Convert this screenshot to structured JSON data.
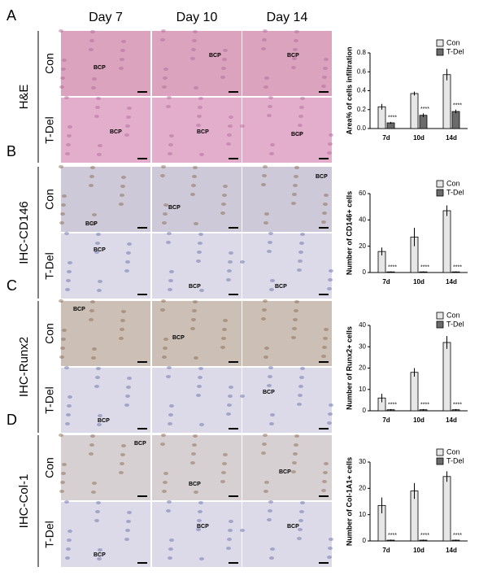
{
  "columns": [
    "Day 7",
    "Day 10",
    "Day 14"
  ],
  "panels": [
    {
      "letter": "A",
      "stain": "H&E",
      "rows": [
        "Con",
        "T-Del"
      ],
      "tile_labels": [
        "BCP",
        "BCP",
        "BCP",
        "BCP",
        "BCP",
        "BCP"
      ]
    },
    {
      "letter": "B",
      "stain": "IHC-CD146",
      "rows": [
        "Con",
        "T-Del"
      ],
      "tile_labels": [
        "BCP",
        "BCP",
        "BCP",
        "BCP",
        "BCP",
        "BCP"
      ]
    },
    {
      "letter": "C",
      "stain": "IHC-Runx2",
      "rows": [
        "Con",
        "T-Del"
      ],
      "tile_labels": [
        "BCP",
        "BCP",
        "BCP",
        "BCP"
      ]
    },
    {
      "letter": "D",
      "stain": "IHC-Col-1",
      "rows": [
        "Con",
        "T-Del"
      ],
      "tile_labels": [
        "BCP",
        "BCP",
        "BCP",
        "BCP",
        "BCP",
        "BCP"
      ]
    }
  ],
  "chart_data": [
    {
      "type": "bar",
      "y_label": "Area% of cells infiltration",
      "categories": [
        "7d",
        "10d",
        "14d"
      ],
      "series": [
        {
          "name": "Con",
          "color": "#e6e6e6",
          "values": [
            0.23,
            0.37,
            0.57
          ],
          "errors": [
            0.03,
            0.02,
            0.06
          ]
        },
        {
          "name": "T-Del",
          "color": "#6b6b6b",
          "values": [
            0.06,
            0.14,
            0.18
          ],
          "errors": [
            0.01,
            0.02,
            0.02
          ]
        }
      ],
      "annotations": [
        "****",
        "****",
        "****"
      ],
      "ylim": [
        0,
        0.8
      ],
      "yticks": [
        {
          "value": 0,
          "label": "0.0"
        },
        0.2,
        0.4,
        0.6,
        0.8
      ]
    },
    {
      "type": "bar",
      "y_label": "Number of CD146+ cells",
      "categories": [
        "7d",
        "10d",
        "14d"
      ],
      "series": [
        {
          "name": "Con",
          "color": "#e6e6e6",
          "values": [
            16,
            27,
            47
          ],
          "errors": [
            3,
            7,
            4
          ]
        },
        {
          "name": "T-Del",
          "color": "#6b6b6b",
          "values": [
            0.5,
            0.5,
            0.5
          ],
          "errors": [
            0.3,
            0.3,
            0.3
          ]
        }
      ],
      "annotations": [
        "****",
        "****",
        "****"
      ],
      "ylim": [
        0,
        60
      ],
      "yticks": [
        0,
        20,
        40,
        60
      ]
    },
    {
      "type": "bar",
      "y_label": "Number of Runx2+ cells",
      "categories": [
        "7d",
        "10d",
        "14d"
      ],
      "series": [
        {
          "name": "Con",
          "color": "#e6e6e6",
          "values": [
            6,
            18,
            32
          ],
          "errors": [
            2,
            2,
            3
          ]
        },
        {
          "name": "T-Del",
          "color": "#6b6b6b",
          "values": [
            0.5,
            0.5,
            0.5
          ],
          "errors": [
            0.3,
            0.3,
            0.3
          ]
        }
      ],
      "annotations": [
        "****",
        "****",
        "****"
      ],
      "ylim": [
        0,
        40
      ],
      "yticks": [
        0,
        10,
        20,
        30,
        40
      ]
    },
    {
      "type": "bar",
      "y_label": "Number of Col-1A1+ cells",
      "categories": [
        "7d",
        "10d",
        "14d"
      ],
      "series": [
        {
          "name": "Con",
          "color": "#e6e6e6",
          "values": [
            13.5,
            19,
            24.5
          ],
          "errors": [
            3,
            3,
            2
          ]
        },
        {
          "name": "T-Del",
          "color": "#6b6b6b",
          "values": [
            0.3,
            0.3,
            0.3
          ],
          "errors": [
            0.2,
            0.2,
            0.2
          ]
        }
      ],
      "annotations": [
        "****",
        "****",
        "****"
      ],
      "ylim": [
        0,
        30
      ],
      "yticks": [
        0,
        10,
        20,
        30
      ]
    }
  ]
}
